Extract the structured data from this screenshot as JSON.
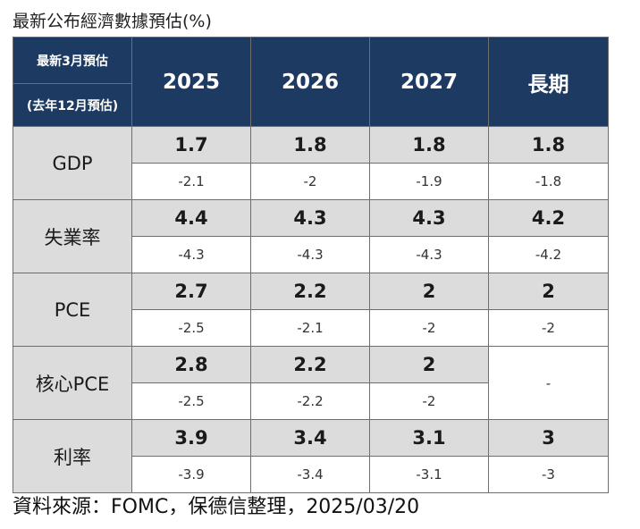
{
  "title": "最新公布經濟數據預估(%)",
  "header": {
    "label_top": "最新3月預估",
    "label_bottom": "(去年12月預估)",
    "columns": [
      "2025",
      "2026",
      "2027",
      "長期"
    ]
  },
  "rows": [
    {
      "metric": "GDP",
      "current": [
        "1.7",
        "1.8",
        "1.8",
        "1.8"
      ],
      "previous": [
        "-2.1",
        "-2",
        "-1.9",
        "-1.8"
      ]
    },
    {
      "metric": "失業率",
      "current": [
        "4.4",
        "4.3",
        "4.3",
        "4.2"
      ],
      "previous": [
        "-4.3",
        "-4.3",
        "-4.3",
        "-4.2"
      ]
    },
    {
      "metric": "PCE",
      "current": [
        "2.7",
        "2.2",
        "2",
        "2"
      ],
      "previous": [
        "-2.5",
        "-2.1",
        "-2",
        "-2"
      ]
    },
    {
      "metric": "核心PCE",
      "current": [
        "2.8",
        "2.2",
        "2"
      ],
      "previous": [
        "-2.5",
        "-2.2",
        "-2"
      ],
      "long_run": "-"
    },
    {
      "metric": "利率",
      "current": [
        "3.9",
        "3.4",
        "3.1",
        "3"
      ],
      "previous": [
        "-3.9",
        "-3.4",
        "-3.1",
        "-3"
      ]
    }
  ],
  "source": "資料來源：FOMC，保德信整理，2025/03/20",
  "colors": {
    "header_bg": "#1d3a63",
    "header_text": "#ffffff",
    "current_row_bg": "#dcdcdc",
    "previous_row_bg": "#ffffff",
    "border": "#6e6e6e"
  }
}
